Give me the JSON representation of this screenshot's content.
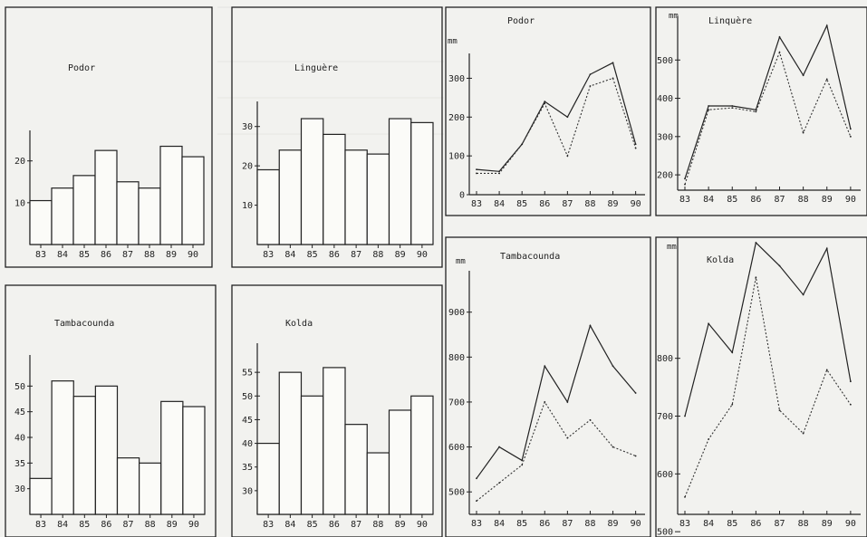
{
  "chart_data": [
    {
      "type": "bar",
      "title": "Podor",
      "unit": "",
      "categories": [
        "83",
        "84",
        "85",
        "86",
        "87",
        "88",
        "89",
        "90"
      ],
      "values": [
        10.5,
        13.5,
        16.5,
        22.5,
        15,
        13.5,
        23.5,
        21
      ],
      "ylim": [
        0,
        26
      ],
      "yticks": [
        10,
        20
      ]
    },
    {
      "type": "bar",
      "title": "Linguère",
      "unit": "",
      "categories": [
        "83",
        "84",
        "85",
        "86",
        "87",
        "88",
        "89",
        "90"
      ],
      "values": [
        19,
        24,
        32,
        28,
        24,
        23,
        32,
        31
      ],
      "ylim": [
        0,
        35
      ],
      "yticks": [
        10,
        20,
        30
      ]
    },
    {
      "type": "bar",
      "title": "Tambacounda",
      "unit": "",
      "categories": [
        "83",
        "84",
        "85",
        "86",
        "87",
        "88",
        "89",
        "90"
      ],
      "values": [
        32,
        51,
        48,
        50,
        36,
        35,
        47,
        46
      ],
      "ylim": [
        25,
        55
      ],
      "yticks": [
        30,
        35,
        40,
        45,
        50
      ]
    },
    {
      "type": "bar",
      "title": "Kolda",
      "unit": "",
      "categories": [
        "83",
        "84",
        "85",
        "86",
        "87",
        "88",
        "89",
        "90"
      ],
      "values": [
        40,
        55,
        50,
        56,
        44,
        38,
        47,
        50
      ],
      "ylim": [
        25,
        60
      ],
      "yticks": [
        30,
        35,
        40,
        45,
        50,
        55
      ]
    },
    {
      "type": "line",
      "title": "Podor",
      "unit": "mm",
      "x": [
        "83",
        "84",
        "85",
        "86",
        "87",
        "88",
        "89",
        "90"
      ],
      "series": [
        {
          "values": [
            65,
            60,
            130,
            240,
            200,
            310,
            340,
            130
          ]
        },
        {
          "values": [
            55,
            55,
            130,
            235,
            100,
            280,
            300,
            120
          ]
        }
      ],
      "ylim": [
        0,
        350
      ],
      "yticks": [
        0,
        100,
        200,
        300
      ]
    },
    {
      "type": "line",
      "title": "Linquère",
      "unit": "mm",
      "x": [
        "83",
        "84",
        "85",
        "86",
        "87",
        "88",
        "89",
        "90"
      ],
      "series": [
        {
          "values": [
            190,
            380,
            380,
            370,
            560,
            460,
            590,
            320
          ]
        },
        {
          "values": [
            175,
            370,
            375,
            365,
            520,
            310,
            450,
            300
          ]
        }
      ],
      "ylim": [
        160,
        600
      ],
      "yticks": [
        200,
        300,
        400,
        500
      ]
    },
    {
      "type": "line",
      "title": "Tambacounda",
      "unit": "mm",
      "x": [
        "83",
        "84",
        "85",
        "86",
        "87",
        "88",
        "89",
        "90"
      ],
      "series": [
        {
          "values": [
            530,
            600,
            570,
            780,
            700,
            870,
            780,
            720
          ]
        },
        {
          "values": [
            480,
            520,
            560,
            700,
            620,
            660,
            600,
            580
          ]
        }
      ],
      "ylim": [
        450,
        980
      ],
      "yticks": [
        500,
        600,
        700,
        800,
        900
      ]
    },
    {
      "type": "line",
      "title": "Kolda",
      "unit": "mm",
      "x": [
        "83",
        "84",
        "85",
        "86",
        "87",
        "88",
        "89",
        "90"
      ],
      "series": [
        {
          "values": [
            700,
            860,
            810,
            1000,
            960,
            910,
            990,
            760
          ]
        },
        {
          "values": [
            560,
            660,
            720,
            940,
            710,
            670,
            780,
            720
          ]
        }
      ],
      "ylim": [
        530,
        1000
      ],
      "yticks": [
        500,
        600,
        700,
        800
      ]
    }
  ]
}
